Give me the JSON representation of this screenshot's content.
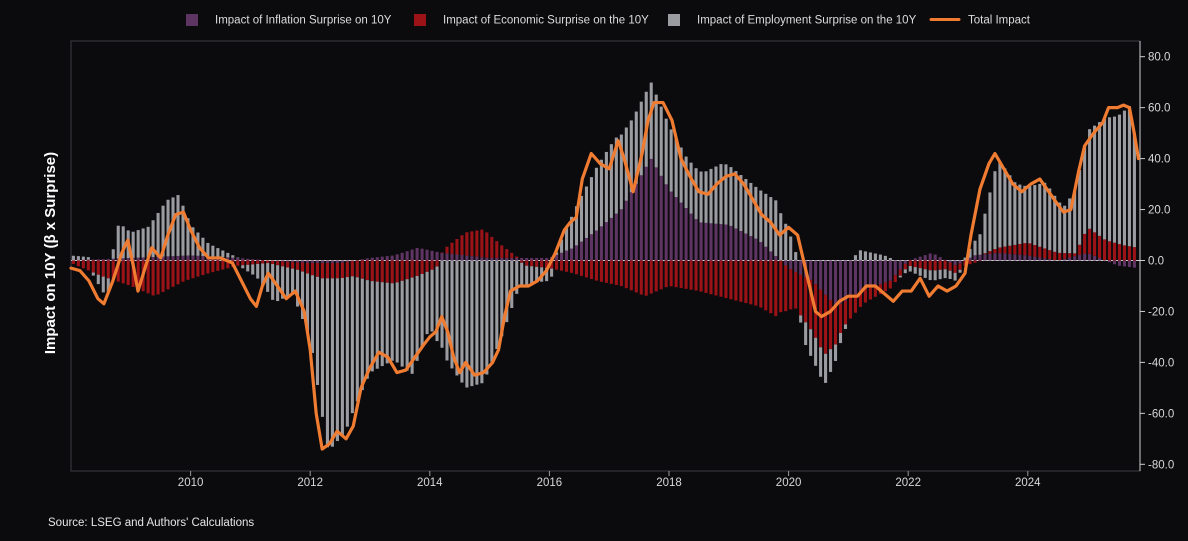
{
  "chart_data": {
    "type": "bar",
    "subtype": "stacked bar with line overlay (monthly)",
    "ylabel": "Impact on 10Y (β x Surprise)",
    "source": "Source: LSEG and Authors' Calculations",
    "ylim": [
      -80,
      85
    ],
    "yticks": [
      80,
      60,
      40,
      20,
      0,
      -20,
      -40,
      -60,
      -80
    ],
    "ytick_labels": [
      "80.0",
      "60.0",
      "40.0",
      "20.0",
      "0.0",
      "-20.0",
      "-40.0",
      "-60.0",
      "-80.0"
    ],
    "xlim": [
      2008.0,
      2025.85
    ],
    "xticks": [
      "2010",
      "2012",
      "2014",
      "2016",
      "2018",
      "2020",
      "2022",
      "2024"
    ],
    "legend": [
      {
        "name": "Impact of Inflation Surprise on 10Y",
        "color": "#5e3462",
        "kind": "bar"
      },
      {
        "name": "Impact of Economic Surprise on the 10Y",
        "color": "#9b1317",
        "kind": "bar"
      },
      {
        "name": "Impact of Employment Surprise on the 10Y",
        "color": "#9a9ca1",
        "kind": "bar"
      },
      {
        "name": "Total Impact",
        "color": "#f07c32",
        "kind": "line"
      }
    ],
    "month_step": 0.0833,
    "series_start": 2008.04,
    "series": [
      {
        "name": "Impact of Inflation Surprise on 10Y",
        "anchors": [
          [
            2008.0,
            0
          ],
          [
            2009.0,
            1
          ],
          [
            2010.0,
            2
          ],
          [
            2010.8,
            1
          ],
          [
            2011.3,
            0
          ],
          [
            2012.0,
            -1
          ],
          [
            2012.5,
            -1
          ],
          [
            2013.0,
            1
          ],
          [
            2013.4,
            2
          ],
          [
            2013.8,
            5
          ],
          [
            2014.2,
            3
          ],
          [
            2014.6,
            2
          ],
          [
            2015.0,
            1
          ],
          [
            2015.5,
            1
          ],
          [
            2016.0,
            1
          ],
          [
            2016.4,
            5
          ],
          [
            2016.8,
            12
          ],
          [
            2017.2,
            20
          ],
          [
            2017.7,
            40
          ],
          [
            2018.0,
            28
          ],
          [
            2018.5,
            15
          ],
          [
            2019.0,
            14
          ],
          [
            2019.5,
            8
          ],
          [
            2020.0,
            -3
          ],
          [
            2020.4,
            -8
          ],
          [
            2020.8,
            -18
          ],
          [
            2021.2,
            -12
          ],
          [
            2021.7,
            -8
          ],
          [
            2022.0,
            0
          ],
          [
            2022.4,
            3
          ],
          [
            2022.8,
            -2
          ],
          [
            2023.1,
            2
          ],
          [
            2023.5,
            3
          ],
          [
            2024.0,
            2
          ],
          [
            2024.5,
            0
          ],
          [
            2025.0,
            3
          ],
          [
            2025.5,
            -2
          ],
          [
            2025.85,
            -3
          ]
        ]
      },
      {
        "name": "Impact of Economic Surprise on the 10Y",
        "anchors": [
          [
            2008.0,
            -1
          ],
          [
            2008.5,
            -6
          ],
          [
            2009.0,
            -10
          ],
          [
            2009.4,
            -14
          ],
          [
            2009.9,
            -8
          ],
          [
            2010.3,
            -5
          ],
          [
            2010.8,
            -2
          ],
          [
            2011.3,
            -1
          ],
          [
            2011.8,
            -3
          ],
          [
            2012.2,
            -6
          ],
          [
            2012.7,
            -6
          ],
          [
            2013.0,
            -8
          ],
          [
            2013.4,
            -9
          ],
          [
            2013.8,
            -6
          ],
          [
            2014.1,
            -3
          ],
          [
            2014.3,
            3
          ],
          [
            2014.6,
            9
          ],
          [
            2014.9,
            11
          ],
          [
            2015.2,
            5
          ],
          [
            2015.6,
            -2
          ],
          [
            2016.0,
            -3
          ],
          [
            2016.4,
            -5
          ],
          [
            2016.8,
            -8
          ],
          [
            2017.2,
            -10
          ],
          [
            2017.6,
            -14
          ],
          [
            2018.0,
            -10
          ],
          [
            2018.5,
            -12
          ],
          [
            2019.0,
            -15
          ],
          [
            2019.5,
            -18
          ],
          [
            2019.8,
            -22
          ],
          [
            2020.1,
            -14
          ],
          [
            2020.4,
            -20
          ],
          [
            2020.6,
            -24
          ],
          [
            2020.9,
            -10
          ],
          [
            2021.3,
            -5
          ],
          [
            2021.7,
            -3
          ],
          [
            2022.0,
            -2
          ],
          [
            2022.4,
            -4
          ],
          [
            2022.8,
            -3
          ],
          [
            2023.1,
            -1
          ],
          [
            2023.5,
            2
          ],
          [
            2024.0,
            5
          ],
          [
            2024.5,
            3
          ],
          [
            2024.8,
            1
          ],
          [
            2025.0,
            10
          ],
          [
            2025.3,
            8
          ],
          [
            2025.6,
            6
          ],
          [
            2025.85,
            5
          ]
        ]
      },
      {
        "name": "Impact of Employment Surprise on the 10Y",
        "anchors": [
          [
            2008.0,
            2
          ],
          [
            2008.3,
            1
          ],
          [
            2008.6,
            -8
          ],
          [
            2008.8,
            14
          ],
          [
            2009.0,
            10
          ],
          [
            2009.3,
            12
          ],
          [
            2009.6,
            22
          ],
          [
            2009.8,
            24
          ],
          [
            2010.0,
            12
          ],
          [
            2010.3,
            5
          ],
          [
            2010.6,
            2
          ],
          [
            2010.8,
            0
          ],
          [
            2011.1,
            -5
          ],
          [
            2011.4,
            -15
          ],
          [
            2011.7,
            -10
          ],
          [
            2012.0,
            -25
          ],
          [
            2012.3,
            -68
          ],
          [
            2012.6,
            -60
          ],
          [
            2013.0,
            -36
          ],
          [
            2013.4,
            -30
          ],
          [
            2013.7,
            -38
          ],
          [
            2014.0,
            -22
          ],
          [
            2014.3,
            -40
          ],
          [
            2014.6,
            -50
          ],
          [
            2014.9,
            -48
          ],
          [
            2015.2,
            -30
          ],
          [
            2015.5,
            -10
          ],
          [
            2015.8,
            -6
          ],
          [
            2016.0,
            -5
          ],
          [
            2016.3,
            10
          ],
          [
            2016.5,
            17
          ],
          [
            2016.8,
            25
          ],
          [
            2017.1,
            30
          ],
          [
            2017.4,
            28
          ],
          [
            2017.7,
            30
          ],
          [
            2018.0,
            25
          ],
          [
            2018.3,
            20
          ],
          [
            2018.6,
            20
          ],
          [
            2018.9,
            24
          ],
          [
            2019.2,
            22
          ],
          [
            2019.5,
            20
          ],
          [
            2019.8,
            22
          ],
          [
            2020.0,
            12
          ],
          [
            2020.3,
            -10
          ],
          [
            2020.6,
            -12
          ],
          [
            2020.9,
            -3
          ],
          [
            2021.2,
            4
          ],
          [
            2021.6,
            2
          ],
          [
            2022.0,
            -2
          ],
          [
            2022.4,
            -4
          ],
          [
            2022.8,
            -3
          ],
          [
            2023.2,
            8
          ],
          [
            2023.5,
            35
          ],
          [
            2023.8,
            24
          ],
          [
            2024.0,
            22
          ],
          [
            2024.3,
            26
          ],
          [
            2024.6,
            18
          ],
          [
            2024.8,
            25
          ],
          [
            2025.0,
            38
          ],
          [
            2025.3,
            48
          ],
          [
            2025.5,
            50
          ],
          [
            2025.7,
            55
          ],
          [
            2025.85,
            36
          ]
        ]
      }
    ],
    "total_impact": {
      "name": "Total Impact",
      "points": [
        [
          2008.0,
          -3
        ],
        [
          2008.15,
          -4
        ],
        [
          2008.3,
          -8
        ],
        [
          2008.45,
          -15
        ],
        [
          2008.55,
          -17
        ],
        [
          2008.7,
          -8
        ],
        [
          2008.85,
          3
        ],
        [
          2008.95,
          8
        ],
        [
          2009.05,
          -3
        ],
        [
          2009.12,
          -12
        ],
        [
          2009.25,
          -2
        ],
        [
          2009.35,
          5
        ],
        [
          2009.5,
          1
        ],
        [
          2009.62,
          10
        ],
        [
          2009.75,
          18
        ],
        [
          2009.88,
          19
        ],
        [
          2010.0,
          12
        ],
        [
          2010.15,
          5
        ],
        [
          2010.3,
          1
        ],
        [
          2010.5,
          1
        ],
        [
          2010.7,
          -1
        ],
        [
          2010.85,
          -8
        ],
        [
          2011.0,
          -15
        ],
        [
          2011.1,
          -18
        ],
        [
          2011.2,
          -10
        ],
        [
          2011.3,
          -5
        ],
        [
          2011.45,
          -10
        ],
        [
          2011.6,
          -15
        ],
        [
          2011.75,
          -12
        ],
        [
          2011.9,
          -20
        ],
        [
          2012.0,
          -35
        ],
        [
          2012.1,
          -60
        ],
        [
          2012.2,
          -74
        ],
        [
          2012.32,
          -72
        ],
        [
          2012.45,
          -67
        ],
        [
          2012.6,
          -70
        ],
        [
          2012.72,
          -65
        ],
        [
          2012.85,
          -50
        ],
        [
          2013.0,
          -42
        ],
        [
          2013.15,
          -36
        ],
        [
          2013.3,
          -38
        ],
        [
          2013.45,
          -44
        ],
        [
          2013.6,
          -43
        ],
        [
          2013.75,
          -38
        ],
        [
          2013.9,
          -33
        ],
        [
          2014.0,
          -30
        ],
        [
          2014.1,
          -28
        ],
        [
          2014.2,
          -22
        ],
        [
          2014.3,
          -28
        ],
        [
          2014.4,
          -38
        ],
        [
          2014.5,
          -44
        ],
        [
          2014.6,
          -40
        ],
        [
          2014.75,
          -45
        ],
        [
          2014.9,
          -44
        ],
        [
          2015.05,
          -40
        ],
        [
          2015.15,
          -35
        ],
        [
          2015.25,
          -22
        ],
        [
          2015.35,
          -12
        ],
        [
          2015.5,
          -10
        ],
        [
          2015.65,
          -10
        ],
        [
          2015.8,
          -8
        ],
        [
          2015.95,
          -4
        ],
        [
          2016.1,
          3
        ],
        [
          2016.25,
          12
        ],
        [
          2016.35,
          15
        ],
        [
          2016.45,
          17
        ],
        [
          2016.55,
          32
        ],
        [
          2016.7,
          42
        ],
        [
          2016.85,
          38
        ],
        [
          2017.0,
          36
        ],
        [
          2017.15,
          47
        ],
        [
          2017.25,
          40
        ],
        [
          2017.4,
          27
        ],
        [
          2017.55,
          42
        ],
        [
          2017.65,
          55
        ],
        [
          2017.75,
          62
        ],
        [
          2017.9,
          62
        ],
        [
          2018.05,
          55
        ],
        [
          2018.2,
          40
        ],
        [
          2018.35,
          33
        ],
        [
          2018.5,
          27
        ],
        [
          2018.65,
          26
        ],
        [
          2018.8,
          30
        ],
        [
          2018.95,
          33
        ],
        [
          2019.1,
          34
        ],
        [
          2019.25,
          30
        ],
        [
          2019.4,
          24
        ],
        [
          2019.55,
          18
        ],
        [
          2019.7,
          15
        ],
        [
          2019.85,
          10
        ],
        [
          2020.0,
          13
        ],
        [
          2020.15,
          10
        ],
        [
          2020.25,
          0
        ],
        [
          2020.35,
          -10
        ],
        [
          2020.45,
          -20
        ],
        [
          2020.55,
          -22
        ],
        [
          2020.7,
          -20
        ],
        [
          2020.85,
          -16
        ],
        [
          2021.0,
          -14
        ],
        [
          2021.15,
          -14
        ],
        [
          2021.3,
          -10
        ],
        [
          2021.45,
          -10
        ],
        [
          2021.6,
          -13
        ],
        [
          2021.75,
          -16
        ],
        [
          2021.9,
          -12
        ],
        [
          2022.05,
          -12
        ],
        [
          2022.2,
          -7
        ],
        [
          2022.35,
          -14
        ],
        [
          2022.5,
          -10
        ],
        [
          2022.65,
          -12
        ],
        [
          2022.8,
          -10
        ],
        [
          2022.95,
          -5
        ],
        [
          2023.05,
          10
        ],
        [
          2023.2,
          28
        ],
        [
          2023.35,
          38
        ],
        [
          2023.45,
          42
        ],
        [
          2023.6,
          36
        ],
        [
          2023.75,
          30
        ],
        [
          2023.9,
          27
        ],
        [
          2024.05,
          30
        ],
        [
          2024.2,
          32
        ],
        [
          2024.35,
          27
        ],
        [
          2024.5,
          22
        ],
        [
          2024.6,
          19
        ],
        [
          2024.72,
          20
        ],
        [
          2024.85,
          35
        ],
        [
          2024.95,
          45
        ],
        [
          2025.1,
          50
        ],
        [
          2025.25,
          54
        ],
        [
          2025.35,
          60
        ],
        [
          2025.5,
          60
        ],
        [
          2025.6,
          61
        ],
        [
          2025.7,
          60
        ],
        [
          2025.78,
          50
        ],
        [
          2025.85,
          40
        ]
      ]
    }
  }
}
